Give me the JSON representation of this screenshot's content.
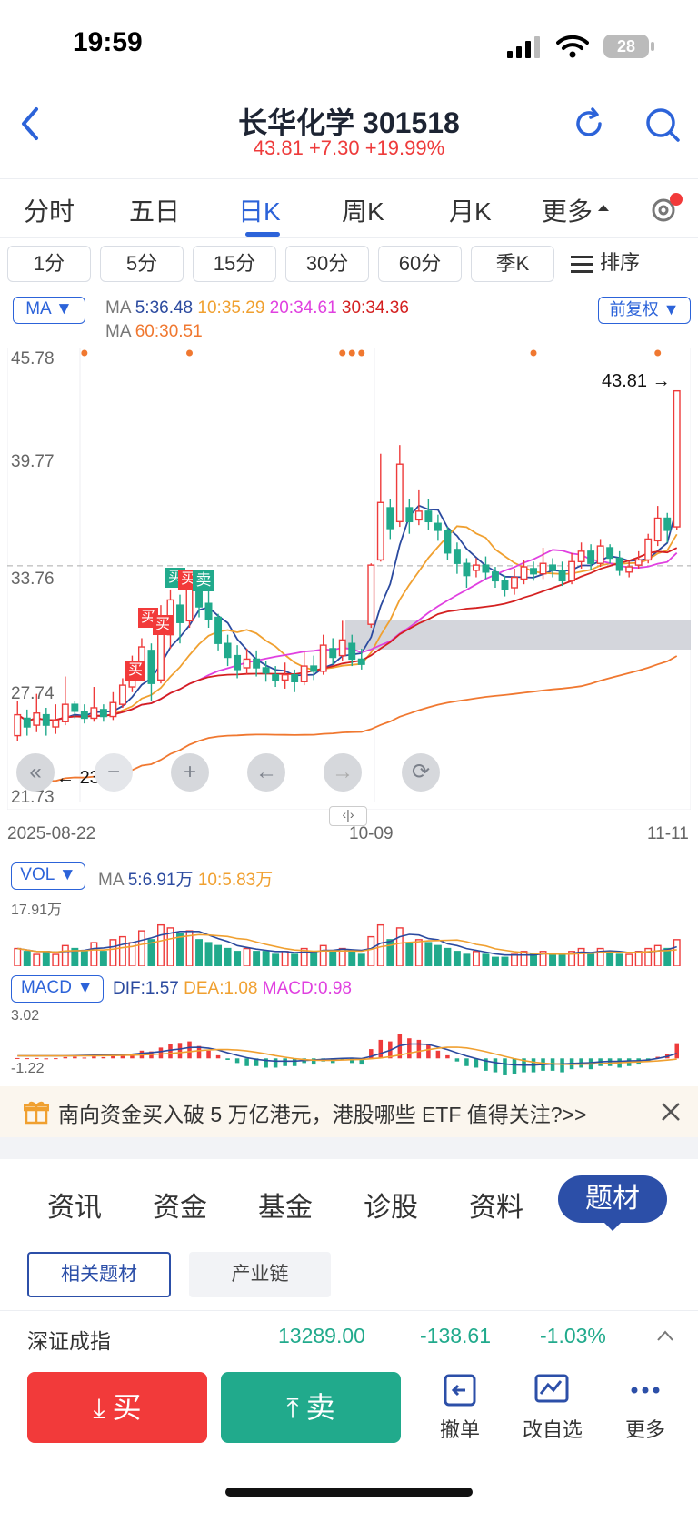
{
  "status": {
    "time": "19:59",
    "battery": "28"
  },
  "header": {
    "title": "长华化学 301518",
    "quote": "43.81 +7.30 +19.99%"
  },
  "period_tabs": [
    "分时",
    "五日",
    "日K",
    "周K",
    "月K",
    "更多"
  ],
  "interval_pills": [
    "1分",
    "5分",
    "15分",
    "30分",
    "60分",
    "季K"
  ],
  "sort_label": "排序",
  "ma_legend": {
    "selector": "MA",
    "line1_prefix": "MA",
    "ma5": "5:36.48",
    "ma10": "10:35.29",
    "ma20": "20:34.61",
    "ma30": "30:34.36",
    "line2_prefix": "MA",
    "ma60": "60:30.51",
    "adjust": "前复权"
  },
  "price_axis": [
    "45.78",
    "39.77",
    "33.76",
    "27.74",
    "21.73"
  ],
  "price_labels": {
    "last": "43.81",
    "low": "23.70"
  },
  "date_axis": [
    "2025-08-22",
    "10-09",
    "11-11"
  ],
  "vol": {
    "selector": "VOL",
    "prefix": "MA",
    "ma5": "5:6.91万",
    "ma10": "10:5.83万",
    "max": "17.91万"
  },
  "macd": {
    "selector": "MACD",
    "dif": "DIF:1.57",
    "dea": "DEA:1.08",
    "macd": "MACD:0.98",
    "max": "3.02",
    "min": "-1.22"
  },
  "markers": {
    "buy": "买",
    "sell": "卖"
  },
  "banner_text": "南向资金买入破 5 万亿港元，港股哪些 ETF 值得关注?>>",
  "info_tabs": [
    "资讯",
    "资金",
    "基金",
    "诊股",
    "资料",
    "题材"
  ],
  "sub_tabs": [
    "相关题材",
    "产业链"
  ],
  "index_row": {
    "name": "深证成指",
    "value": "13289.00",
    "change": "-138.61",
    "pct": "-1.03%"
  },
  "bottom": {
    "buy": "买",
    "sell": "卖",
    "cancel": "撤单",
    "watch": "改自选",
    "more": "更多"
  },
  "colors": {
    "up": "#ee3b3b",
    "down": "#21aa8c",
    "accent": "#2c63d9",
    "ma5": "#2b4a9f",
    "ma10": "#f0a030",
    "ma20": "#e040e0",
    "ma30": "#d42020",
    "ma60": "#f07830"
  },
  "chart_data": {
    "type": "line",
    "price_ylim": [
      21.73,
      45.78
    ],
    "candles": [
      {
        "o": 24.0,
        "c": 25.2,
        "h": 26.0,
        "l": 23.7
      },
      {
        "o": 25.0,
        "c": 24.5,
        "h": 25.5,
        "l": 24.0
      },
      {
        "o": 24.6,
        "c": 25.3,
        "h": 26.4,
        "l": 24.2
      },
      {
        "o": 25.2,
        "c": 24.6,
        "h": 25.6,
        "l": 24.0
      },
      {
        "o": 24.5,
        "c": 24.9,
        "h": 25.8,
        "l": 24.1
      },
      {
        "o": 24.8,
        "c": 25.8,
        "h": 27.4,
        "l": 24.6
      },
      {
        "o": 25.8,
        "c": 25.4,
        "h": 26.0,
        "l": 25.0
      },
      {
        "o": 25.4,
        "c": 25.0,
        "h": 25.8,
        "l": 24.7
      },
      {
        "o": 25.0,
        "c": 25.6,
        "h": 26.8,
        "l": 24.8
      },
      {
        "o": 25.5,
        "c": 25.1,
        "h": 25.8,
        "l": 24.8
      },
      {
        "o": 25.1,
        "c": 25.9,
        "h": 26.5,
        "l": 24.9
      },
      {
        "o": 25.8,
        "c": 26.9,
        "h": 27.3,
        "l": 25.6
      },
      {
        "o": 26.8,
        "c": 27.6,
        "h": 28.6,
        "l": 26.5
      },
      {
        "o": 27.5,
        "c": 29.1,
        "h": 29.6,
        "l": 27.2
      },
      {
        "o": 28.9,
        "c": 27.0,
        "h": 29.3,
        "l": 26.0
      },
      {
        "o": 27.2,
        "c": 29.9,
        "h": 31.5,
        "l": 27.0
      },
      {
        "o": 29.8,
        "c": 31.8,
        "h": 32.4,
        "l": 29.0
      },
      {
        "o": 31.5,
        "c": 30.5,
        "h": 32.1,
        "l": 29.3
      },
      {
        "o": 30.6,
        "c": 32.5,
        "h": 32.9,
        "l": 30.2
      },
      {
        "o": 32.3,
        "c": 31.4,
        "h": 32.7,
        "l": 30.8
      },
      {
        "o": 31.6,
        "c": 30.7,
        "h": 32.5,
        "l": 30.2
      },
      {
        "o": 30.8,
        "c": 29.3,
        "h": 31.0,
        "l": 28.9
      },
      {
        "o": 29.3,
        "c": 28.5,
        "h": 29.8,
        "l": 28.0
      },
      {
        "o": 28.6,
        "c": 27.8,
        "h": 29.2,
        "l": 27.3
      },
      {
        "o": 27.9,
        "c": 28.4,
        "h": 29.0,
        "l": 27.5
      },
      {
        "o": 28.4,
        "c": 27.9,
        "h": 28.9,
        "l": 27.4
      },
      {
        "o": 27.9,
        "c": 27.6,
        "h": 28.3,
        "l": 27.1
      },
      {
        "o": 27.5,
        "c": 27.2,
        "h": 28.0,
        "l": 26.8
      },
      {
        "o": 27.2,
        "c": 27.5,
        "h": 28.2,
        "l": 26.7
      },
      {
        "o": 27.5,
        "c": 27.1,
        "h": 27.8,
        "l": 26.5
      },
      {
        "o": 27.1,
        "c": 28.0,
        "h": 28.8,
        "l": 26.9
      },
      {
        "o": 28.0,
        "c": 27.7,
        "h": 28.6,
        "l": 27.2
      },
      {
        "o": 27.7,
        "c": 29.2,
        "h": 29.8,
        "l": 27.5
      },
      {
        "o": 29.0,
        "c": 28.5,
        "h": 29.6,
        "l": 28.1
      },
      {
        "o": 28.6,
        "c": 29.5,
        "h": 30.6,
        "l": 28.3
      },
      {
        "o": 29.3,
        "c": 28.4,
        "h": 29.8,
        "l": 28.0
      },
      {
        "o": 28.4,
        "c": 28.1,
        "h": 29.0,
        "l": 27.8
      },
      {
        "o": 30.4,
        "c": 33.8,
        "h": 33.9,
        "l": 30.2
      },
      {
        "o": 34.1,
        "c": 37.4,
        "h": 40.2,
        "l": 34.0
      },
      {
        "o": 37.1,
        "c": 35.9,
        "h": 37.6,
        "l": 35.3
      },
      {
        "o": 36.3,
        "c": 39.6,
        "h": 40.7,
        "l": 36.0
      },
      {
        "o": 37.1,
        "c": 36.3,
        "h": 37.6,
        "l": 35.6
      },
      {
        "o": 36.4,
        "c": 36.9,
        "h": 38.1,
        "l": 36.1
      },
      {
        "o": 36.9,
        "c": 36.3,
        "h": 37.6,
        "l": 35.8
      },
      {
        "o": 36.2,
        "c": 35.8,
        "h": 36.7,
        "l": 35.2
      },
      {
        "o": 35.8,
        "c": 34.5,
        "h": 36.0,
        "l": 34.1
      },
      {
        "o": 34.7,
        "c": 33.9,
        "h": 35.1,
        "l": 33.3
      },
      {
        "o": 33.9,
        "c": 33.2,
        "h": 34.2,
        "l": 32.5
      },
      {
        "o": 33.5,
        "c": 33.8,
        "h": 34.2,
        "l": 33.1
      },
      {
        "o": 33.8,
        "c": 33.4,
        "h": 34.3,
        "l": 33.0
      },
      {
        "o": 33.4,
        "c": 32.9,
        "h": 33.7,
        "l": 32.5
      },
      {
        "o": 32.9,
        "c": 32.4,
        "h": 33.2,
        "l": 32.0
      },
      {
        "o": 32.5,
        "c": 33.1,
        "h": 33.6,
        "l": 32.1
      },
      {
        "o": 33.0,
        "c": 33.7,
        "h": 34.1,
        "l": 32.7
      },
      {
        "o": 33.6,
        "c": 33.3,
        "h": 34.0,
        "l": 32.9
      },
      {
        "o": 33.3,
        "c": 33.9,
        "h": 34.8,
        "l": 33.0
      },
      {
        "o": 33.8,
        "c": 33.5,
        "h": 34.2,
        "l": 33.1
      },
      {
        "o": 33.5,
        "c": 32.9,
        "h": 34.0,
        "l": 32.6
      },
      {
        "o": 32.9,
        "c": 34.0,
        "h": 34.5,
        "l": 32.7
      },
      {
        "o": 34.0,
        "c": 34.6,
        "h": 35.1,
        "l": 33.6
      },
      {
        "o": 34.6,
        "c": 33.9,
        "h": 35.0,
        "l": 33.5
      },
      {
        "o": 33.9,
        "c": 34.9,
        "h": 35.3,
        "l": 33.7
      },
      {
        "o": 34.8,
        "c": 34.2,
        "h": 35.0,
        "l": 33.9
      },
      {
        "o": 34.2,
        "c": 33.5,
        "h": 34.6,
        "l": 33.2
      },
      {
        "o": 33.4,
        "c": 33.7,
        "h": 34.0,
        "l": 33.1
      },
      {
        "o": 33.8,
        "c": 34.1,
        "h": 34.6,
        "l": 33.6
      },
      {
        "o": 34.1,
        "c": 35.3,
        "h": 35.6,
        "l": 33.9
      },
      {
        "o": 35.2,
        "c": 36.5,
        "h": 37.2,
        "l": 34.9
      },
      {
        "o": 36.5,
        "c": 35.8,
        "h": 36.8,
        "l": 35.1
      },
      {
        "o": 36.0,
        "c": 43.81,
        "h": 43.81,
        "l": 35.8
      }
    ],
    "vol_ylim": [
      0,
      17.91
    ],
    "volumes": [
      6,
      5,
      4,
      5,
      4,
      7,
      6,
      5,
      8,
      5,
      9,
      10,
      8,
      12,
      9,
      14,
      13,
      11,
      12,
      9,
      8,
      7,
      6,
      5,
      6,
      5,
      5,
      4,
      5,
      4,
      6,
      5,
      7,
      5,
      6,
      5,
      4,
      10,
      14,
      9,
      13,
      8,
      9,
      8,
      7,
      6,
      5,
      4,
      5,
      4,
      3,
      3,
      4,
      5,
      4,
      5,
      4,
      4,
      5,
      6,
      4,
      6,
      5,
      4,
      4,
      5,
      6,
      7,
      6,
      9
    ],
    "macd_ylim": [
      -1.22,
      3.02
    ],
    "macd": [
      0.02,
      0.01,
      0.02,
      0,
      0.01,
      0.08,
      0.1,
      0.05,
      0.12,
      0.08,
      0.15,
      0.25,
      0.3,
      0.5,
      0.45,
      0.7,
      0.9,
      1.0,
      1.1,
      0.8,
      0.5,
      0.2,
      -0.1,
      -0.3,
      -0.5,
      -0.5,
      -0.6,
      -0.6,
      -0.5,
      -0.5,
      -0.3,
      -0.4,
      -0.2,
      -0.3,
      -0.1,
      -0.3,
      -0.4,
      0.6,
      1.2,
      1.1,
      1.6,
      1.3,
      1.2,
      0.9,
      0.5,
      0.2,
      -0.2,
      -0.5,
      -0.6,
      -0.8,
      -0.9,
      -1.1,
      -1.0,
      -0.9,
      -0.9,
      -0.8,
      -0.8,
      -0.9,
      -0.7,
      -0.6,
      -0.7,
      -0.5,
      -0.5,
      -0.6,
      -0.5,
      -0.4,
      -0.2,
      0.1,
      0.3,
      0.98
    ]
  }
}
